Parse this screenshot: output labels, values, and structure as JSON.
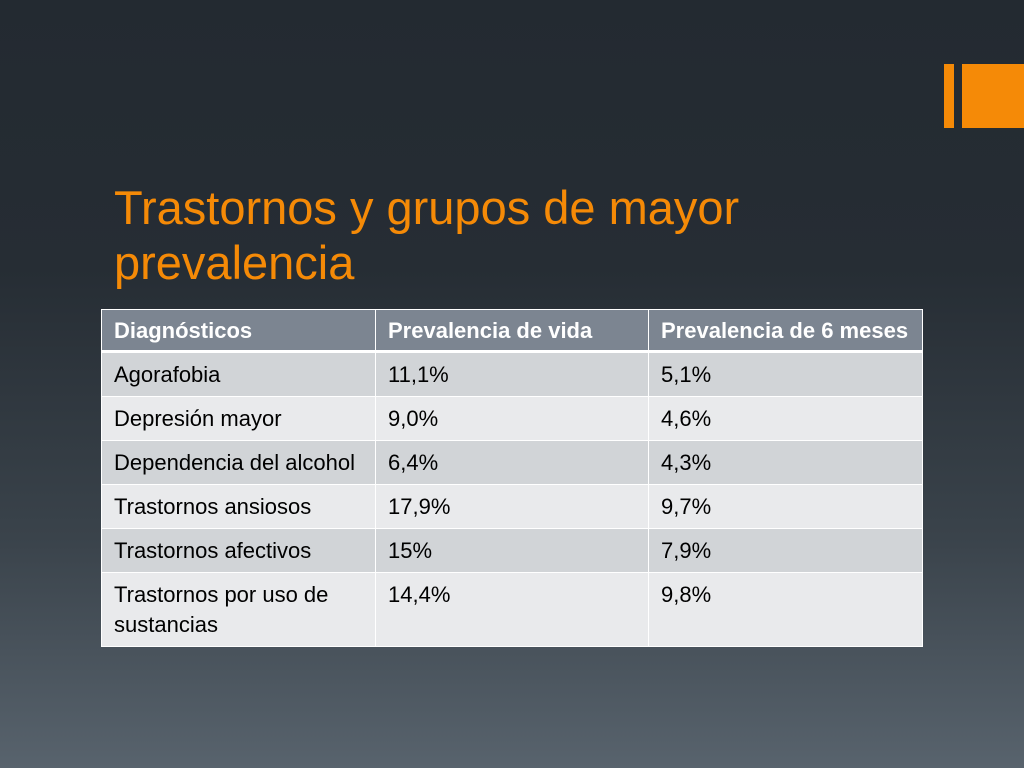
{
  "slide": {
    "title": "Trastornos y grupos de mayor prevalencia",
    "accent_color": "#f58a07"
  },
  "table": {
    "headers": [
      "Diagnósticos",
      "Prevalencia de vida",
      "Prevalencia de 6 meses"
    ],
    "rows": [
      [
        "Agorafobia",
        "11,1%",
        "5,1%"
      ],
      [
        "Depresión mayor",
        "9,0%",
        "4,6%"
      ],
      [
        "Dependencia del alcohol",
        "6,4%",
        "4,3%"
      ],
      [
        "Trastornos ansiosos",
        "17,9%",
        "9,7%"
      ],
      [
        "Trastornos afectivos",
        "15%",
        "7,9%"
      ],
      [
        "Trastornos por uso de sustancias",
        "14,4%",
        "9,8%"
      ]
    ]
  }
}
